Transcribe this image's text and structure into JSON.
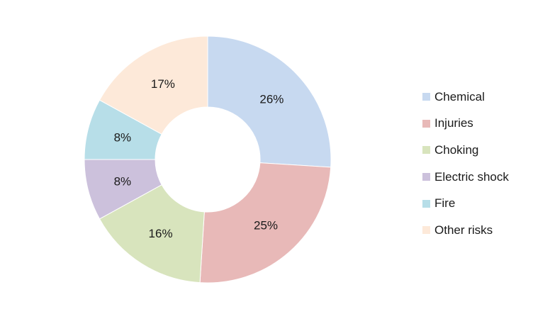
{
  "chart_data": {
    "type": "pie",
    "style": "donut",
    "categories": [
      "Chemical",
      "Injuries",
      "Choking",
      "Electric shock",
      "Fire",
      "Other risks"
    ],
    "values": [
      26,
      25,
      16,
      8,
      8,
      17
    ],
    "labels": [
      "26%",
      "25%",
      "16%",
      "8%",
      "8%",
      "17%"
    ],
    "colors": [
      "#c7d9f0",
      "#e8b9b8",
      "#d8e4bd",
      "#ccc1dc",
      "#b7dee8",
      "#fde9d9"
    ],
    "legend_position": "right",
    "start_angle": "top, clockwise"
  }
}
